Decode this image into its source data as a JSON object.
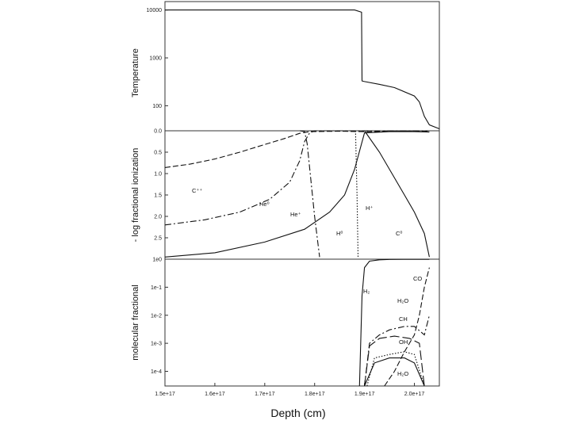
{
  "chart_data": [
    {
      "type": "line",
      "ylabel": "Temperature",
      "yscale": "log",
      "ylim": [
        30,
        15000
      ],
      "xlim": [
        1.5e+17,
        2.05e+17
      ],
      "yticks": [
        {
          "v": 10000,
          "label": "10000"
        },
        {
          "v": 1000,
          "label": "1000"
        },
        {
          "v": 100,
          "label": "100"
        }
      ],
      "series": [
        {
          "style": "solid",
          "x": [
            1.5e+17,
            1.88e+17,
            1.894e+17,
            1.895e+17,
            1.9e+17,
            1.93e+17,
            1.96e+17,
            2e+17,
            2.01e+17,
            2.02e+17,
            2.03e+17,
            2.05e+17
          ],
          "y": [
            10000,
            10000,
            9000,
            330,
            320,
            280,
            240,
            160,
            120,
            60,
            40,
            33
          ]
        }
      ]
    },
    {
      "type": "line",
      "ylabel": "- log fractional ionization",
      "ylim": [
        0,
        3
      ],
      "yinverted": true,
      "xlim": [
        1.5e+17,
        2.05e+17
      ],
      "yticks": [
        {
          "v": 0.0,
          "label": "0.0"
        },
        {
          "v": 0.5,
          "label": "0.5"
        },
        {
          "v": 1.0,
          "label": "1.0"
        },
        {
          "v": 1.5,
          "label": "1.5"
        },
        {
          "v": 2.0,
          "label": "2.0"
        },
        {
          "v": 2.5,
          "label": "2.5"
        }
      ],
      "series": [
        {
          "name": "C⁺⁺",
          "style": "dashed",
          "x": [
            1.5e+17,
            1.55e+17,
            1.6e+17,
            1.65e+17,
            1.7e+17,
            1.74e+17,
            1.77e+17,
            1.79e+17,
            1.85e+17,
            1.9e+17,
            2e+17,
            2.03e+17
          ],
          "y": [
            0.86,
            0.78,
            0.66,
            0.5,
            0.32,
            0.18,
            0.06,
            0.02,
            0.01,
            0.02,
            0.01,
            0.02
          ]
        },
        {
          "name": "He⁰",
          "style": "dash-dot",
          "x": [
            1.5e+17,
            1.58e+17,
            1.65e+17,
            1.71e+17,
            1.75e+17,
            1.77e+17,
            1.78e+17,
            1.79e+17,
            1.8e+17,
            2.03e+17
          ],
          "y": [
            2.2,
            2.08,
            1.9,
            1.6,
            1.2,
            0.7,
            0.25,
            0.05,
            0.0,
            0.0
          ]
        },
        {
          "name": "He⁺",
          "style": "dash-dot",
          "x": [
            1.77e+17,
            1.78e+17,
            1.785e+17,
            1.8e+17,
            1.81e+17
          ],
          "y": [
            0.0,
            0.02,
            0.3,
            2.0,
            2.95
          ]
        },
        {
          "name": "H⁰",
          "style": "solid",
          "x": [
            1.5e+17,
            1.6e+17,
            1.7e+17,
            1.78e+17,
            1.83e+17,
            1.86e+17,
            1.88e+17,
            1.9e+17,
            1.95e+17,
            2e+17,
            2.03e+17
          ],
          "y": [
            2.95,
            2.85,
            2.6,
            2.3,
            1.9,
            1.5,
            0.9,
            0.05,
            0.02,
            0.02,
            0.03
          ]
        },
        {
          "name": "H⁺",
          "style": "dotted",
          "x": [
            1.882e+17,
            1.885e+17,
            1.887e+17
          ],
          "y": [
            0.0,
            1.5,
            2.95
          ]
        },
        {
          "name": "C⁰",
          "style": "solid",
          "x": [
            1.9e+17,
            1.93e+17,
            1.96e+17,
            1.98e+17,
            2e+17,
            2.02e+17,
            2.03e+17
          ],
          "y": [
            0.0,
            0.5,
            1.1,
            1.5,
            1.9,
            2.4,
            2.95
          ]
        }
      ]
    },
    {
      "type": "line",
      "ylabel": "molecular fractional",
      "xlabel": "Depth (cm)",
      "yscale": "log",
      "ylim": [
        3e-05,
        1
      ],
      "xlim": [
        1.5e+17,
        2.05e+17
      ],
      "yticks": [
        {
          "v": 1,
          "label": "1e0"
        },
        {
          "v": 0.1,
          "label": "1e-1"
        },
        {
          "v": 0.01,
          "label": "1e-2"
        },
        {
          "v": 0.001,
          "label": "1e-3"
        },
        {
          "v": 0.0001,
          "label": "1e-4"
        }
      ],
      "xticks": [
        {
          "v": 1.5e+17,
          "label": "1.5e+17"
        },
        {
          "v": 1.6e+17,
          "label": "1.6e+17"
        },
        {
          "v": 1.7e+17,
          "label": "1.7e+17"
        },
        {
          "v": 1.8e+17,
          "label": "1.8e+17"
        },
        {
          "v": 1.9e+17,
          "label": "1.9e+17"
        },
        {
          "v": 2e+17,
          "label": "2.0e+17"
        }
      ],
      "series": [
        {
          "name": "H₂",
          "style": "solid",
          "x": [
            1.89e+17,
            1.895e+17,
            1.9e+17,
            1.91e+17,
            1.93e+17,
            1.95e+17,
            1.98e+17,
            2.02e+17,
            2.03e+17
          ],
          "y": [
            3e-05,
            0.05,
            0.5,
            0.85,
            0.95,
            0.98,
            0.99,
            0.99,
            0.99
          ]
        },
        {
          "name": "CO",
          "style": "dashed",
          "x": [
            1.94e+17,
            1.96e+17,
            1.98e+17,
            2e+17,
            2.01e+17,
            2.02e+17,
            2.03e+17
          ],
          "y": [
            3e-05,
            0.0001,
            0.0005,
            0.002,
            0.01,
            0.1,
            0.5
          ]
        },
        {
          "name": "H₂O",
          "style": "dash-dot",
          "x": [
            1.9e+17,
            1.91e+17,
            1.93e+17,
            1.95e+17,
            1.98e+17,
            2e+17,
            2.02e+17,
            2.03e+17
          ],
          "y": [
            3e-05,
            0.001,
            0.002,
            0.003,
            0.004,
            0.004,
            0.002,
            0.01
          ]
        },
        {
          "name": "CH",
          "style": "long-dash",
          "x": [
            1.9e+17,
            1.91e+17,
            1.93e+17,
            1.96e+17,
            1.99e+17,
            2.01e+17,
            2.02e+17
          ],
          "y": [
            3e-05,
            0.0008,
            0.0015,
            0.0018,
            0.0015,
            0.001,
            3e-05
          ]
        },
        {
          "name": "OH",
          "style": "dotted",
          "x": [
            1.905e+17,
            1.92e+17,
            1.95e+17,
            1.98e+17,
            2e+17,
            2.02e+17
          ],
          "y": [
            3e-05,
            0.0003,
            0.0004,
            0.0005,
            0.0004,
            3e-05
          ]
        },
        {
          "name": "H₂O",
          "style": "solid",
          "x": [
            1.9e+17,
            1.92e+17,
            1.95e+17,
            1.98e+17,
            2e+17,
            2.02e+17
          ],
          "y": [
            3e-05,
            0.0002,
            0.0003,
            0.0003,
            0.0002,
            3e-05
          ]
        }
      ]
    }
  ],
  "labels": {
    "panel1": {
      "ylabel": "Temperature"
    },
    "panel2": {
      "ylabel": "- log fractional ionization",
      "curves": [
        "C⁺⁺",
        "He⁰",
        "He⁺",
        "H⁰",
        "H⁺",
        "C⁰"
      ]
    },
    "panel3": {
      "ylabel": "molecular fractional",
      "curves": [
        "H₂",
        "CO",
        "H₂O",
        "CH",
        "OH",
        "H₂O"
      ]
    },
    "xlabel": "Depth (cm)"
  }
}
